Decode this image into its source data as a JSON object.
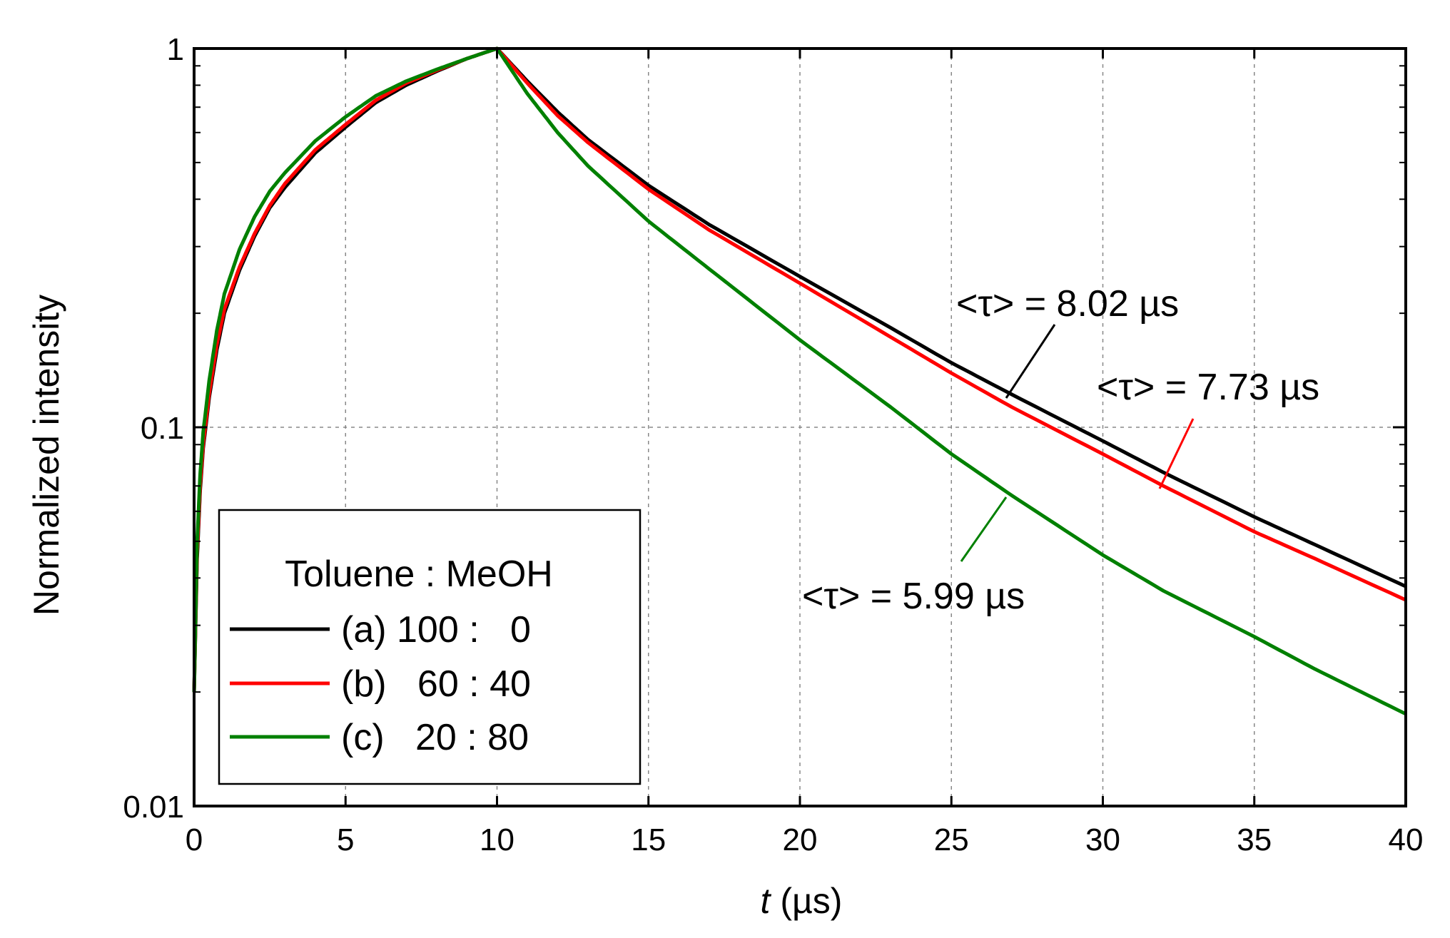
{
  "chart_data": {
    "type": "line",
    "title": "",
    "xlabel": {
      "symbol": "t",
      "unit": " (µs)"
    },
    "ylabel": "Normalized intensity",
    "xlim": [
      0,
      40
    ],
    "ylim": [
      0.01,
      1
    ],
    "yscale": "log",
    "x_ticks": [
      0,
      5,
      10,
      15,
      20,
      25,
      30,
      35,
      40
    ],
    "x_tick_labels": [
      "0",
      "5",
      "10",
      "15",
      "20",
      "25",
      "30",
      "35",
      "40"
    ],
    "y_ticks": [
      0.01,
      0.1,
      1
    ],
    "y_tick_labels": [
      "0.01",
      "0.1",
      "1"
    ],
    "grid": true,
    "legend": {
      "placement": "lower-left",
      "title": "Toluene : MeOH",
      "entries": [
        {
          "name": "(a) 100 :   0",
          "color": "#000000"
        },
        {
          "name": "(b)   60 : 40",
          "color": "#ff0000"
        },
        {
          "name": "(c)   20 : 80",
          "color": "#008000"
        }
      ]
    },
    "series": [
      {
        "name": "(a) 100 : 0",
        "color": "#000000",
        "lifetime": "8.02 µs",
        "points": [
          [
            0,
            0.02
          ],
          [
            0.1,
            0.045
          ],
          [
            0.2,
            0.068
          ],
          [
            0.3,
            0.088
          ],
          [
            0.5,
            0.12
          ],
          [
            0.75,
            0.16
          ],
          [
            1,
            0.2
          ],
          [
            1.5,
            0.26
          ],
          [
            2,
            0.32
          ],
          [
            2.5,
            0.38
          ],
          [
            3,
            0.43
          ],
          [
            4,
            0.53
          ],
          [
            5,
            0.62
          ],
          [
            6,
            0.72
          ],
          [
            7,
            0.8
          ],
          [
            8,
            0.87
          ],
          [
            9,
            0.94
          ],
          [
            10,
            1.0
          ],
          [
            11,
            0.82
          ],
          [
            12,
            0.68
          ],
          [
            13,
            0.575
          ],
          [
            15,
            0.435
          ],
          [
            17,
            0.343
          ],
          [
            20,
            0.25
          ],
          [
            23,
            0.183
          ],
          [
            25,
            0.148
          ],
          [
            27,
            0.122
          ],
          [
            30,
            0.092
          ],
          [
            32,
            0.076
          ],
          [
            35,
            0.058
          ],
          [
            37,
            0.049
          ],
          [
            40,
            0.038
          ]
        ]
      },
      {
        "name": "(b) 60 : 40",
        "color": "#ff0000",
        "lifetime": "7.73 µs",
        "points": [
          [
            0,
            0.02
          ],
          [
            0.1,
            0.047
          ],
          [
            0.2,
            0.07
          ],
          [
            0.3,
            0.09
          ],
          [
            0.5,
            0.123
          ],
          [
            0.75,
            0.165
          ],
          [
            1,
            0.205
          ],
          [
            1.5,
            0.265
          ],
          [
            2,
            0.325
          ],
          [
            2.5,
            0.385
          ],
          [
            3,
            0.44
          ],
          [
            4,
            0.54
          ],
          [
            5,
            0.63
          ],
          [
            6,
            0.73
          ],
          [
            7,
            0.81
          ],
          [
            8,
            0.875
          ],
          [
            9,
            0.94
          ],
          [
            10,
            1.0
          ],
          [
            11,
            0.81
          ],
          [
            12,
            0.665
          ],
          [
            13,
            0.565
          ],
          [
            15,
            0.425
          ],
          [
            17,
            0.332
          ],
          [
            20,
            0.24
          ],
          [
            23,
            0.173
          ],
          [
            25,
            0.139
          ],
          [
            27,
            0.113
          ],
          [
            30,
            0.085
          ],
          [
            32,
            0.07
          ],
          [
            35,
            0.053
          ],
          [
            37,
            0.045
          ],
          [
            40,
            0.035
          ]
        ]
      },
      {
        "name": "(c) 20 : 80",
        "color": "#008000",
        "lifetime": "5.99 µs",
        "points": [
          [
            0,
            0.02
          ],
          [
            0.1,
            0.05
          ],
          [
            0.2,
            0.075
          ],
          [
            0.3,
            0.097
          ],
          [
            0.5,
            0.133
          ],
          [
            0.75,
            0.18
          ],
          [
            1,
            0.225
          ],
          [
            1.5,
            0.295
          ],
          [
            2,
            0.36
          ],
          [
            2.5,
            0.42
          ],
          [
            3,
            0.47
          ],
          [
            4,
            0.57
          ],
          [
            5,
            0.66
          ],
          [
            6,
            0.75
          ],
          [
            7,
            0.82
          ],
          [
            8,
            0.88
          ],
          [
            9,
            0.94
          ],
          [
            10,
            1.0
          ],
          [
            11,
            0.76
          ],
          [
            12,
            0.6
          ],
          [
            13,
            0.49
          ],
          [
            15,
            0.35
          ],
          [
            17,
            0.262
          ],
          [
            20,
            0.17
          ],
          [
            23,
            0.113
          ],
          [
            25,
            0.085
          ],
          [
            27,
            0.066
          ],
          [
            30,
            0.046
          ],
          [
            32,
            0.037
          ],
          [
            35,
            0.028
          ],
          [
            37,
            0.023
          ],
          [
            40,
            0.0175
          ]
        ]
      }
    ],
    "annotations": [
      {
        "series": 0,
        "text": "<τ> = 8.02 µs"
      },
      {
        "series": 1,
        "text": "<τ> = 7.73 µs"
      },
      {
        "series": 2,
        "text": "<τ> = 5.99 µs"
      }
    ]
  }
}
